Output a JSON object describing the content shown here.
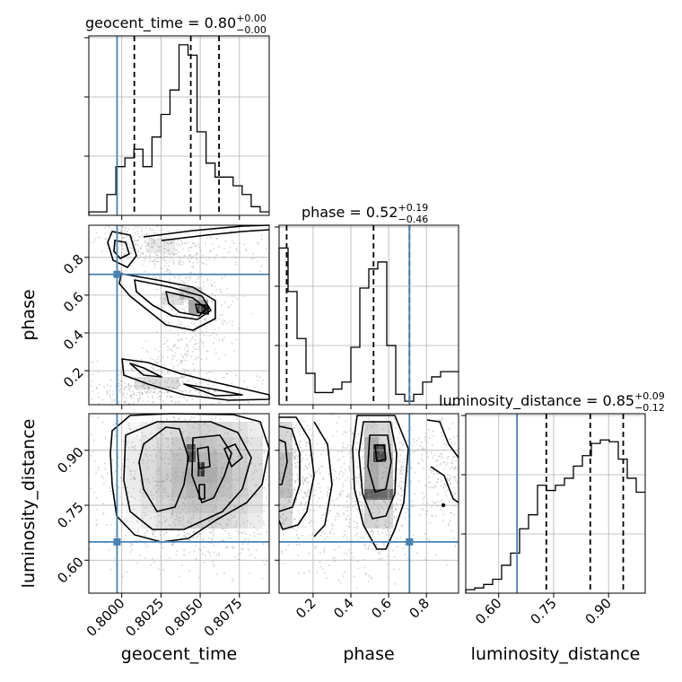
{
  "chart_data": {
    "type": "corner",
    "parameters": [
      "geocent_time",
      "phase",
      "luminosity_distance"
    ],
    "truths": {
      "geocent_time": 0.7997,
      "phase": 0.71,
      "luminosity_distance": 0.65
    },
    "ranges": {
      "geocent_time": [
        0.7979,
        0.8094
      ],
      "phase": [
        0.02,
        0.97
      ],
      "luminosity_distance": [
        0.51,
        1.0
      ]
    },
    "ticks": {
      "geocent_time": [
        "0.8000",
        "0.8025",
        "0.8050",
        "0.8075"
      ],
      "phase": [
        "0.2",
        "0.4",
        "0.6",
        "0.8"
      ],
      "luminosity_distance": [
        "0.60",
        "0.75",
        "0.90"
      ]
    },
    "titles": [
      {
        "param": "geocent_time",
        "main": "geocent_time = 0.80",
        "sup": "+0.00",
        "sub": "−0.00"
      },
      {
        "param": "phase",
        "main": "phase = 0.52",
        "sup": "+0.19",
        "sub": "−0.46"
      },
      {
        "param": "luminosity_distance",
        "main": "luminosity_distance = 0.85",
        "sup": "+0.09",
        "sub": "−0.12"
      }
    ],
    "quantiles": {
      "geocent_time": [
        0.8008,
        0.8044,
        0.8062
      ],
      "phase": [
        0.06,
        0.52,
        0.71
      ],
      "luminosity_distance": [
        0.73,
        0.85,
        0.94
      ]
    },
    "histograms": {
      "geocent_time": {
        "counts": [
          0.02,
          0.02,
          0.12,
          0.28,
          0.33,
          0.38,
          0.28,
          0.45,
          0.58,
          0.72,
          0.98,
          0.92,
          0.48,
          0.3,
          0.22,
          0.22,
          0.17,
          0.12,
          0.05,
          0.02
        ]
      },
      "phase": {
        "counts": [
          0.9,
          0.65,
          0.38,
          0.18,
          0.07,
          0.07,
          0.09,
          0.13,
          0.33,
          0.67,
          0.78,
          0.82,
          0.34,
          0.06,
          0.02,
          0.06,
          0.13,
          0.16,
          0.19,
          0.19
        ]
      },
      "luminosity_distance": {
        "counts": [
          0.02,
          0.03,
          0.05,
          0.08,
          0.16,
          0.23,
          0.37,
          0.45,
          0.62,
          0.59,
          0.62,
          0.66,
          0.73,
          0.79,
          0.86,
          0.88,
          0.87,
          0.77,
          0.66,
          0.58
        ]
      }
    },
    "grid": true,
    "colors": {
      "truth": "#4682b4",
      "hist": "#000000",
      "contour": "#000000",
      "points": "#9a9a9a"
    }
  }
}
